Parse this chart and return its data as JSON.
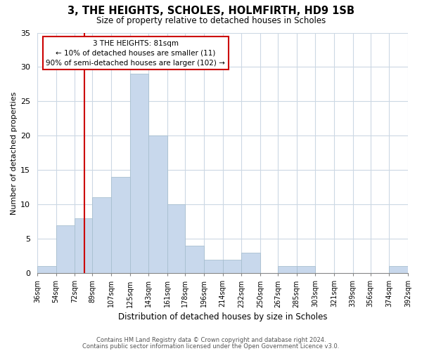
{
  "title": "3, THE HEIGHTS, SCHOLES, HOLMFIRTH, HD9 1SB",
  "subtitle": "Size of property relative to detached houses in Scholes",
  "xlabel": "Distribution of detached houses by size in Scholes",
  "ylabel": "Number of detached properties",
  "bar_color": "#c8d8ec",
  "bar_edge_color": "#a8bfd0",
  "bin_edges": [
    36,
    54,
    72,
    89,
    107,
    125,
    143,
    161,
    178,
    196,
    214,
    232,
    250,
    267,
    285,
    303,
    321,
    339,
    356,
    374,
    392
  ],
  "counts": [
    1,
    7,
    8,
    11,
    14,
    29,
    20,
    10,
    4,
    2,
    2,
    3,
    0,
    1,
    1,
    0,
    0,
    0,
    0,
    1
  ],
  "tick_labels": [
    "36sqm",
    "54sqm",
    "72sqm",
    "89sqm",
    "107sqm",
    "125sqm",
    "143sqm",
    "161sqm",
    "178sqm",
    "196sqm",
    "214sqm",
    "232sqm",
    "250sqm",
    "267sqm",
    "285sqm",
    "303sqm",
    "321sqm",
    "339sqm",
    "356sqm",
    "374sqm",
    "392sqm"
  ],
  "vline_x": 81,
  "vline_color": "#cc0000",
  "annotation_title": "3 THE HEIGHTS: 81sqm",
  "annotation_line1": "← 10% of detached houses are smaller (11)",
  "annotation_line2": "90% of semi-detached houses are larger (102) →",
  "annotation_box_color": "#ffffff",
  "annotation_box_edge_color": "#cc0000",
  "ylim": [
    0,
    35
  ],
  "yticks": [
    0,
    5,
    10,
    15,
    20,
    25,
    30,
    35
  ],
  "footer1": "Contains HM Land Registry data © Crown copyright and database right 2024.",
  "footer2": "Contains public sector information licensed under the Open Government Licence v3.0.",
  "background_color": "#ffffff",
  "grid_color": "#ccd8e4"
}
